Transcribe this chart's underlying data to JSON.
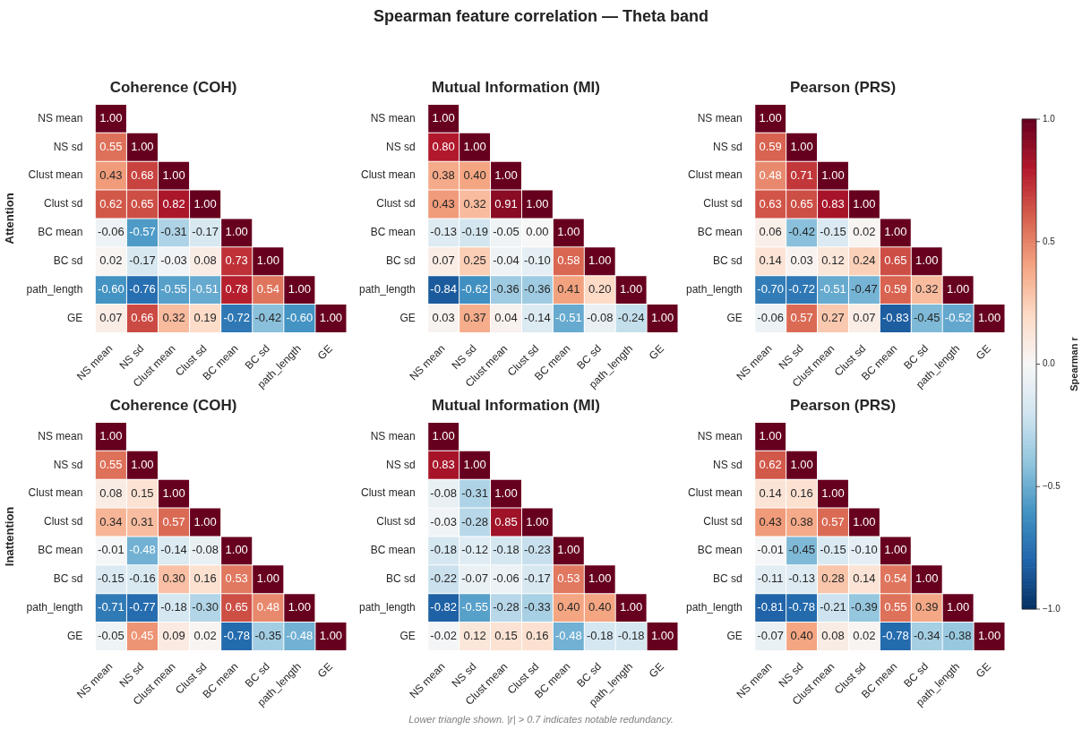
{
  "chart_data": [
    {
      "type": "heatmap",
      "title": "Coherence (COH)",
      "ylabel": "Attention",
      "categories": [
        "NS mean",
        "NS sd",
        "Clust mean",
        "Clust sd",
        "BC mean",
        "BC sd",
        "path_length",
        "GE"
      ],
      "y_categories": [
        "NS mean",
        "NS sd",
        "Clust mean",
        "Clust sd",
        "BC mean",
        "BC sd",
        "path_length",
        "GE"
      ],
      "cells": [
        [
          1.0,
          null,
          null,
          null,
          null,
          null,
          null,
          null
        ],
        [
          0.55,
          1.0,
          null,
          null,
          null,
          null,
          null,
          null
        ],
        [
          0.43,
          0.68,
          1.0,
          null,
          null,
          null,
          null,
          null
        ],
        [
          0.62,
          0.65,
          0.82,
          1.0,
          null,
          null,
          null,
          null
        ],
        [
          -0.06,
          -0.57,
          -0.31,
          -0.17,
          1.0,
          null,
          null,
          null
        ],
        [
          0.02,
          -0.17,
          -0.03,
          0.08,
          0.73,
          1.0,
          null,
          null
        ],
        [
          -0.6,
          -0.76,
          -0.55,
          -0.51,
          0.78,
          0.54,
          1.0,
          null
        ],
        [
          0.07,
          0.66,
          0.32,
          0.19,
          -0.72,
          -0.42,
          -0.6,
          1.0
        ]
      ],
      "cell_labels": [
        [
          "1.00",
          null,
          null,
          null,
          null,
          null,
          null,
          null
        ],
        [
          "0.55",
          "1.00",
          null,
          null,
          null,
          null,
          null,
          null
        ],
        [
          "0.43",
          "0.68",
          "1.00",
          null,
          null,
          null,
          null,
          null
        ],
        [
          "0.62",
          "0.65",
          "0.82",
          "1.00",
          null,
          null,
          null,
          null
        ],
        [
          "-0.06",
          "-0.57",
          "-0.31",
          "-0.17",
          "1.00",
          null,
          null,
          null
        ],
        [
          "0.02",
          "-0.17",
          "-0.03",
          "0.08",
          "0.73",
          "1.00",
          null,
          null
        ],
        [
          "-0.60",
          "-0.76",
          "-0.55",
          "-0.51",
          "0.78",
          "0.54",
          "1.00",
          null
        ],
        [
          "0.07",
          "0.66",
          "0.32",
          "0.19",
          "-0.72",
          "-0.42",
          "-0.60",
          "1.00"
        ]
      ]
    },
    {
      "type": "heatmap",
      "title": "Mutual Information (MI)",
      "categories": [
        "NS mean",
        "NS sd",
        "Clust mean",
        "Clust sd",
        "BC mean",
        "BC sd",
        "path_length",
        "GE"
      ],
      "y_categories": [
        "NS mean",
        "NS sd",
        "Clust mean",
        "Clust sd",
        "BC mean",
        "BC sd",
        "path_length",
        "GE"
      ],
      "cells": [
        [
          1.0,
          null,
          null,
          null,
          null,
          null,
          null,
          null
        ],
        [
          0.8,
          1.0,
          null,
          null,
          null,
          null,
          null,
          null
        ],
        [
          0.38,
          0.4,
          1.0,
          null,
          null,
          null,
          null,
          null
        ],
        [
          0.43,
          0.32,
          0.91,
          1.0,
          null,
          null,
          null,
          null
        ],
        [
          -0.13,
          -0.19,
          -0.05,
          0.0,
          1.0,
          null,
          null,
          null
        ],
        [
          0.07,
          0.25,
          -0.04,
          -0.1,
          0.58,
          1.0,
          null,
          null
        ],
        [
          -0.84,
          -0.62,
          -0.36,
          -0.36,
          0.41,
          0.2,
          1.0,
          null
        ],
        [
          0.03,
          0.37,
          0.04,
          -0.14,
          -0.51,
          -0.08,
          -0.24,
          1.0
        ]
      ],
      "cell_labels": [
        [
          "1.00",
          null,
          null,
          null,
          null,
          null,
          null,
          null
        ],
        [
          "0.80",
          "1.00",
          null,
          null,
          null,
          null,
          null,
          null
        ],
        [
          "0.38",
          "0.40",
          "1.00",
          null,
          null,
          null,
          null,
          null
        ],
        [
          "0.43",
          "0.32",
          "0.91",
          "1.00",
          null,
          null,
          null,
          null
        ],
        [
          "-0.13",
          "-0.19",
          "-0.05",
          "0.00",
          "1.00",
          null,
          null,
          null
        ],
        [
          "0.07",
          "0.25",
          "-0.04",
          "-0.10",
          "0.58",
          "1.00",
          null,
          null
        ],
        [
          "-0.84",
          "-0.62",
          "-0.36",
          "-0.36",
          "0.41",
          "0.20",
          "1.00",
          null
        ],
        [
          "0.03",
          "0.37",
          "0.04",
          "-0.14",
          "-0.51",
          "-0.08",
          "-0.24",
          "1.00"
        ]
      ]
    },
    {
      "type": "heatmap",
      "title": "Pearson (PRS)",
      "clim": [
        -1,
        1
      ],
      "clabel": "Spearman r",
      "cticks": [
        {
          "value": 1,
          "label": "1.0"
        },
        {
          "value": 0.5,
          "label": "0.5"
        },
        {
          "value": 0,
          "label": "0.0"
        },
        {
          "value": -0.5,
          "label": "−0.5"
        },
        {
          "value": -1,
          "label": "−1.0"
        }
      ],
      "categories": [
        "NS mean",
        "NS sd",
        "Clust mean",
        "Clust sd",
        "BC mean",
        "BC sd",
        "path_length",
        "GE"
      ],
      "y_categories": [
        "NS mean",
        "NS sd",
        "Clust mean",
        "Clust sd",
        "BC mean",
        "BC sd",
        "path_length",
        "GE"
      ],
      "cells": [
        [
          1.0,
          null,
          null,
          null,
          null,
          null,
          null,
          null
        ],
        [
          0.59,
          1.0,
          null,
          null,
          null,
          null,
          null,
          null
        ],
        [
          0.48,
          0.71,
          1.0,
          null,
          null,
          null,
          null,
          null
        ],
        [
          0.63,
          0.65,
          0.83,
          1.0,
          null,
          null,
          null,
          null
        ],
        [
          0.06,
          -0.42,
          -0.15,
          0.02,
          1.0,
          null,
          null,
          null
        ],
        [
          0.14,
          0.03,
          0.12,
          0.24,
          0.65,
          1.0,
          null,
          null
        ],
        [
          -0.7,
          -0.72,
          -0.51,
          -0.47,
          0.59,
          0.32,
          1.0,
          null
        ],
        [
          -0.06,
          0.57,
          0.27,
          0.07,
          -0.83,
          -0.45,
          -0.52,
          1.0
        ]
      ],
      "cell_labels": [
        [
          "1.00",
          null,
          null,
          null,
          null,
          null,
          null,
          null
        ],
        [
          "0.59",
          "1.00",
          null,
          null,
          null,
          null,
          null,
          null
        ],
        [
          "0.48",
          "0.71",
          "1.00",
          null,
          null,
          null,
          null,
          null
        ],
        [
          "0.63",
          "0.65",
          "0.83",
          "1.00",
          null,
          null,
          null,
          null
        ],
        [
          "0.06",
          "-0.42",
          "-0.15",
          "0.02",
          "1.00",
          null,
          null,
          null
        ],
        [
          "0.14",
          "0.03",
          "0.12",
          "0.24",
          "0.65",
          "1.00",
          null,
          null
        ],
        [
          "-0.70",
          "-0.72",
          "-0.51",
          "-0.47",
          "0.59",
          "0.32",
          "1.00",
          null
        ],
        [
          "-0.06",
          "0.57",
          "0.27",
          "0.07",
          "-0.83",
          "-0.45",
          "-0.52",
          "1.00"
        ]
      ]
    },
    {
      "type": "heatmap",
      "title": "Coherence (COH)",
      "ylabel": "Inattention",
      "categories": [
        "NS mean",
        "NS sd",
        "Clust mean",
        "Clust sd",
        "BC mean",
        "BC sd",
        "path_length",
        "GE"
      ],
      "y_categories": [
        "NS mean",
        "NS sd",
        "Clust mean",
        "Clust sd",
        "BC mean",
        "BC sd",
        "path_length",
        "GE"
      ],
      "cells": [
        [
          1.0,
          null,
          null,
          null,
          null,
          null,
          null,
          null
        ],
        [
          0.55,
          1.0,
          null,
          null,
          null,
          null,
          null,
          null
        ],
        [
          0.08,
          0.15,
          1.0,
          null,
          null,
          null,
          null,
          null
        ],
        [
          0.34,
          0.31,
          0.57,
          1.0,
          null,
          null,
          null,
          null
        ],
        [
          -0.01,
          -0.48,
          -0.14,
          -0.08,
          1.0,
          null,
          null,
          null
        ],
        [
          -0.15,
          -0.16,
          0.3,
          0.16,
          0.53,
          1.0,
          null,
          null
        ],
        [
          -0.71,
          -0.77,
          -0.18,
          -0.3,
          0.65,
          0.48,
          1.0,
          null
        ],
        [
          -0.05,
          0.45,
          0.09,
          0.02,
          -0.78,
          -0.35,
          -0.48,
          1.0
        ]
      ],
      "cell_labels": [
        [
          "1.00",
          null,
          null,
          null,
          null,
          null,
          null,
          null
        ],
        [
          "0.55",
          "1.00",
          null,
          null,
          null,
          null,
          null,
          null
        ],
        [
          "0.08",
          "0.15",
          "1.00",
          null,
          null,
          null,
          null,
          null
        ],
        [
          "0.34",
          "0.31",
          "0.57",
          "1.00",
          null,
          null,
          null,
          null
        ],
        [
          "-0.01",
          "-0.48",
          "-0.14",
          "-0.08",
          "1.00",
          null,
          null,
          null
        ],
        [
          "-0.15",
          "-0.16",
          "0.30",
          "0.16",
          "0.53",
          "1.00",
          null,
          null
        ],
        [
          "-0.71",
          "-0.77",
          "-0.18",
          "-0.30",
          "0.65",
          "0.48",
          "1.00",
          null
        ],
        [
          "-0.05",
          "0.45",
          "0.09",
          "0.02",
          "-0.78",
          "-0.35",
          "-0.48",
          "1.00"
        ]
      ]
    },
    {
      "type": "heatmap",
      "title": "Mutual Information (MI)",
      "categories": [
        "NS mean",
        "NS sd",
        "Clust mean",
        "Clust sd",
        "BC mean",
        "BC sd",
        "path_length",
        "GE"
      ],
      "y_categories": [
        "NS mean",
        "NS sd",
        "Clust mean",
        "Clust sd",
        "BC mean",
        "BC sd",
        "path_length",
        "GE"
      ],
      "cells": [
        [
          1.0,
          null,
          null,
          null,
          null,
          null,
          null,
          null
        ],
        [
          0.83,
          1.0,
          null,
          null,
          null,
          null,
          null,
          null
        ],
        [
          -0.08,
          -0.31,
          1.0,
          null,
          null,
          null,
          null,
          null
        ],
        [
          -0.03,
          -0.28,
          0.85,
          1.0,
          null,
          null,
          null,
          null
        ],
        [
          -0.18,
          -0.12,
          -0.18,
          -0.23,
          1.0,
          null,
          null,
          null
        ],
        [
          -0.22,
          -0.07,
          -0.06,
          -0.17,
          0.53,
          1.0,
          null,
          null
        ],
        [
          -0.82,
          -0.55,
          -0.28,
          -0.33,
          0.4,
          0.4,
          1.0,
          null
        ],
        [
          -0.02,
          0.12,
          0.15,
          0.16,
          -0.48,
          -0.18,
          -0.18,
          1.0
        ]
      ],
      "cell_labels": [
        [
          "1.00",
          null,
          null,
          null,
          null,
          null,
          null,
          null
        ],
        [
          "0.83",
          "1.00",
          null,
          null,
          null,
          null,
          null,
          null
        ],
        [
          "-0.08",
          "-0.31",
          "1.00",
          null,
          null,
          null,
          null,
          null
        ],
        [
          "-0.03",
          "-0.28",
          "0.85",
          "1.00",
          null,
          null,
          null,
          null
        ],
        [
          "-0.18",
          "-0.12",
          "-0.18",
          "-0.23",
          "1.00",
          null,
          null,
          null
        ],
        [
          "-0.22",
          "-0.07",
          "-0.06",
          "-0.17",
          "0.53",
          "1.00",
          null,
          null
        ],
        [
          "-0.82",
          "-0.55",
          "-0.28",
          "-0.33",
          "0.40",
          "0.40",
          "1.00",
          null
        ],
        [
          "-0.02",
          "0.12",
          "0.15",
          "0.16",
          "-0.48",
          "-0.18",
          "-0.18",
          "1.00"
        ]
      ]
    },
    {
      "type": "heatmap",
      "title": "Pearson (PRS)",
      "categories": [
        "NS mean",
        "NS sd",
        "Clust mean",
        "Clust sd",
        "BC mean",
        "BC sd",
        "path_length",
        "GE"
      ],
      "y_categories": [
        "NS mean",
        "NS sd",
        "Clust mean",
        "Clust sd",
        "BC mean",
        "BC sd",
        "path_length",
        "GE"
      ],
      "cells": [
        [
          1.0,
          null,
          null,
          null,
          null,
          null,
          null,
          null
        ],
        [
          0.62,
          1.0,
          null,
          null,
          null,
          null,
          null,
          null
        ],
        [
          0.14,
          0.16,
          1.0,
          null,
          null,
          null,
          null,
          null
        ],
        [
          0.43,
          0.38,
          0.57,
          1.0,
          null,
          null,
          null,
          null
        ],
        [
          -0.01,
          -0.45,
          -0.15,
          -0.1,
          1.0,
          null,
          null,
          null
        ],
        [
          -0.11,
          -0.13,
          0.28,
          0.14,
          0.54,
          1.0,
          null,
          null
        ],
        [
          -0.81,
          -0.78,
          -0.21,
          -0.39,
          0.55,
          0.39,
          1.0,
          null
        ],
        [
          -0.07,
          0.4,
          0.08,
          0.02,
          -0.78,
          -0.34,
          -0.38,
          1.0
        ]
      ],
      "cell_labels": [
        [
          "1.00",
          null,
          null,
          null,
          null,
          null,
          null,
          null
        ],
        [
          "0.62",
          "1.00",
          null,
          null,
          null,
          null,
          null,
          null
        ],
        [
          "0.14",
          "0.16",
          "1.00",
          null,
          null,
          null,
          null,
          null
        ],
        [
          "0.43",
          "0.38",
          "0.57",
          "1.00",
          null,
          null,
          null,
          null
        ],
        [
          "-0.01",
          "-0.45",
          "-0.15",
          "-0.10",
          "1.00",
          null,
          null,
          null
        ],
        [
          "-0.11",
          "-0.13",
          "0.28",
          "0.14",
          "0.54",
          "1.00",
          null,
          null
        ],
        [
          "-0.81",
          "-0.78",
          "-0.21",
          "-0.39",
          "0.55",
          "0.39",
          "1.00",
          null
        ],
        [
          "-0.07",
          "0.40",
          "0.08",
          "0.02",
          "-0.78",
          "-0.34",
          "-0.38",
          "1.00"
        ]
      ]
    },
    {
      "type": "other",
      "title": "Spearman feature correlation — Theta band",
      "annotations": [
        "Lower triangle shown. |r| > 0.7 indicates notable redundancy."
      ]
    }
  ]
}
